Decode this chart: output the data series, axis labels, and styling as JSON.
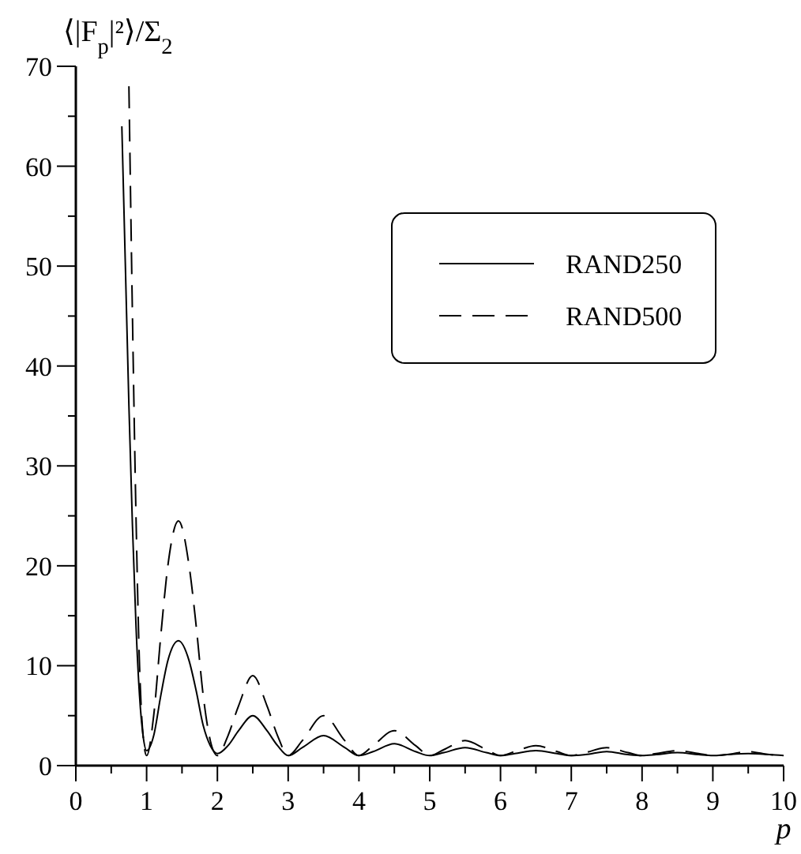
{
  "chart_data": {
    "type": "line",
    "xlabel": "p",
    "ylabel": "⟨|F$_{p}$|²⟩/Σ$_{2}$",
    "xlim": [
      0,
      10
    ],
    "ylim": [
      0,
      70
    ],
    "xticks": [
      0,
      {
        "value": 0.5,
        "label": null
      },
      1,
      {
        "value": 1.5,
        "label": null
      },
      2,
      {
        "value": 2.5,
        "label": null
      },
      3,
      {
        "value": 3.5,
        "label": null
      },
      4,
      {
        "value": 4.5,
        "label": null
      },
      5,
      {
        "value": 5.5,
        "label": null
      },
      6,
      {
        "value": 6.5,
        "label": null
      },
      7,
      {
        "value": 7.5,
        "label": null
      },
      8,
      {
        "value": 8.5,
        "label": null
      },
      9,
      {
        "value": 9.5,
        "label": null
      },
      10
    ],
    "yticks": [
      0,
      {
        "value": 5,
        "label": null
      },
      10,
      {
        "value": 15,
        "label": null
      },
      20,
      {
        "value": 25,
        "label": null
      },
      30,
      {
        "value": 35,
        "label": null
      },
      40,
      {
        "value": 45,
        "label": null
      },
      50,
      {
        "value": 55,
        "label": null
      },
      60,
      {
        "value": 65,
        "label": null
      },
      70
    ],
    "grid": false,
    "legend": "top right",
    "series": [
      {
        "name": "RAND250",
        "color": "#000000",
        "line_style": "solid",
        "x": [
          0.65,
          0.7,
          0.75,
          0.8,
          0.85,
          0.9,
          0.95,
          1.0,
          1.1,
          1.2,
          1.3,
          1.45,
          1.6,
          1.7,
          1.8,
          1.9,
          2.0,
          2.15,
          2.3,
          2.5,
          2.7,
          2.85,
          3.0,
          3.2,
          3.5,
          3.8,
          4.0,
          4.2,
          4.5,
          4.8,
          5.0,
          5.2,
          5.5,
          5.8,
          6.0,
          6.2,
          6.5,
          6.8,
          7.0,
          7.2,
          7.5,
          7.8,
          8.0,
          8.2,
          8.5,
          8.8,
          9.0,
          9.2,
          9.5,
          9.8,
          10
        ],
        "values": [
          64,
          50,
          36,
          24,
          14,
          7,
          3,
          1.5,
          3,
          7,
          10.5,
          12.5,
          10.5,
          7.5,
          4,
          2,
          1.2,
          2,
          3.5,
          5,
          3.5,
          2,
          1,
          1.8,
          3,
          1.8,
          1,
          1.4,
          2.2,
          1.4,
          1,
          1.3,
          1.8,
          1.3,
          1,
          1.2,
          1.5,
          1.2,
          1,
          1.1,
          1.4,
          1.1,
          1,
          1.1,
          1.3,
          1.1,
          1,
          1.1,
          1.2,
          1.1,
          1
        ]
      },
      {
        "name": "RAND500",
        "color": "#000000",
        "line_style": "dashed",
        "x": [
          0.75,
          0.8,
          0.85,
          0.9,
          0.95,
          1.0,
          1.1,
          1.2,
          1.3,
          1.45,
          1.6,
          1.7,
          1.8,
          1.9,
          2.0,
          2.15,
          2.3,
          2.5,
          2.7,
          2.85,
          3.0,
          3.2,
          3.5,
          3.8,
          4.0,
          4.2,
          4.5,
          4.8,
          5.0,
          5.2,
          5.5,
          5.8,
          6.0,
          6.2,
          6.5,
          6.8,
          7.0,
          7.2,
          7.5,
          7.8,
          8.0,
          8.2,
          8.5,
          8.8,
          9.0,
          9.2,
          9.5,
          9.8,
          10
        ],
        "values": [
          68,
          45,
          25,
          10,
          3,
          1,
          5,
          13,
          20,
          24.5,
          20,
          14,
          7,
          2.5,
          1,
          3,
          6,
          9,
          6,
          3,
          1,
          2.5,
          5,
          2.5,
          1,
          2,
          3.5,
          2,
          1,
          1.6,
          2.5,
          1.6,
          1,
          1.4,
          2,
          1.4,
          1,
          1.3,
          1.8,
          1.3,
          1,
          1.2,
          1.5,
          1.2,
          1,
          1.1,
          1.4,
          1.1,
          1
        ]
      }
    ]
  }
}
